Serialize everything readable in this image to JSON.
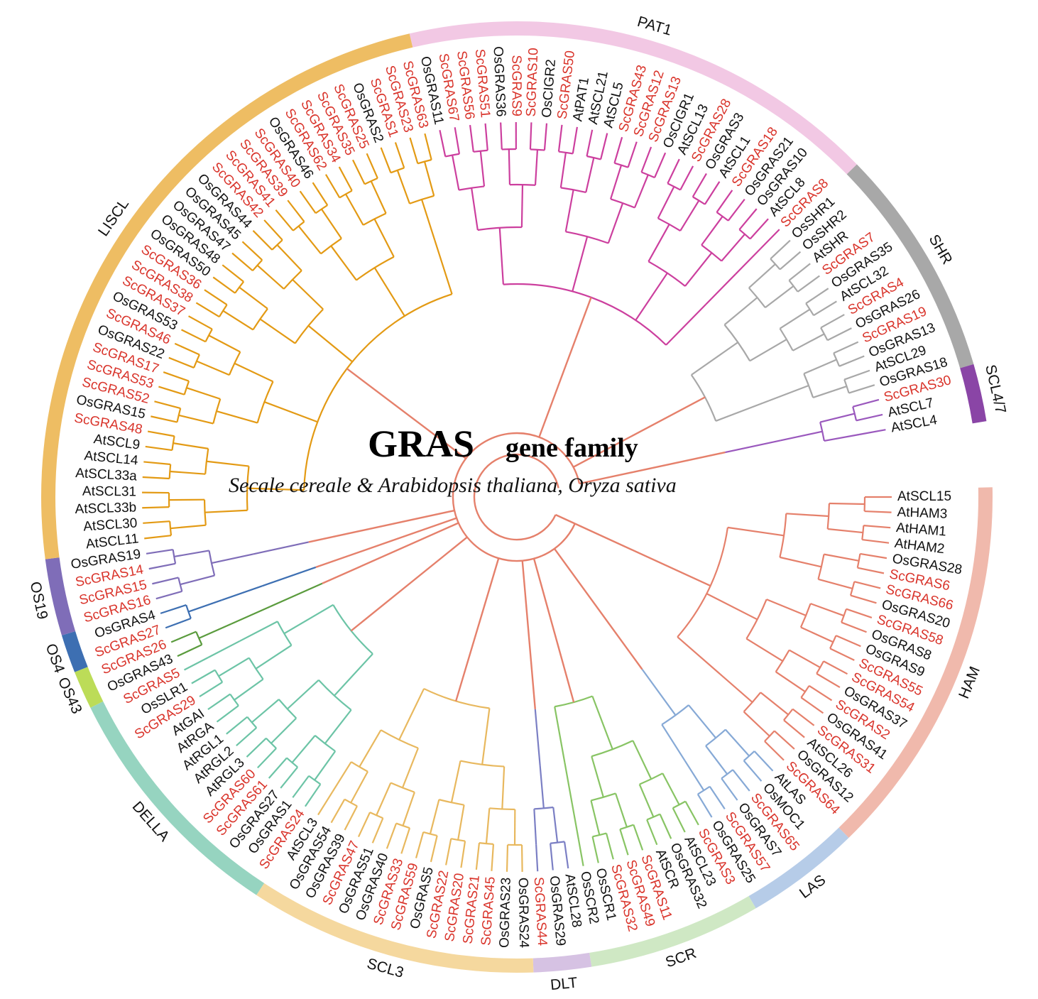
{
  "title": {
    "main": "GRAS",
    "gene": "gene family",
    "species": "Secale cereale & Arabidopsis thaliana, Oryza sativa"
  },
  "colors": {
    "rye_label": "#d9342b",
    "other_label": "#111111",
    "backbone": "#e5806b"
  },
  "subfamilies": [
    {
      "name": "LISCL",
      "color": "#eebd63",
      "branch": "#e39a14"
    },
    {
      "name": "PAT1",
      "color": "#f2c8e4",
      "branch": "#cc3f9e"
    },
    {
      "name": "SHR",
      "color": "#a8a8a8",
      "branch": "#a8a8a8"
    },
    {
      "name": "SCL4/7",
      "color": "#8a45a6",
      "branch": "#9a58bd"
    },
    {
      "name": "HAM",
      "color": "#f0b9ac",
      "branch": "#e5806b"
    },
    {
      "name": "LAS",
      "color": "#b6cce8",
      "branch": "#86a9d6"
    },
    {
      "name": "SCR",
      "color": "#cfe8c4",
      "branch": "#88c464"
    },
    {
      "name": "DLT",
      "color": "#d6c2e3",
      "branch": "#7b7fc4"
    },
    {
      "name": "SCL3",
      "color": "#f5d89e",
      "branch": "#e8b85e"
    },
    {
      "name": "DELLA",
      "color": "#96d4c0",
      "branch": "#6cc4a6"
    },
    {
      "name": "OS43",
      "color": "#bcdc58",
      "branch": "#5a9b3d"
    },
    {
      "name": "OS4",
      "color": "#3d6fb2",
      "branch": "#3d6fb2"
    },
    {
      "name": "OS19",
      "color": "#7f6db8",
      "branch": "#7f6db8"
    }
  ],
  "leaves": [
    {
      "label": "AtSCL15",
      "group": 4
    },
    {
      "label": "AtHAM3",
      "group": 4
    },
    {
      "label": "AtHAM1",
      "group": 4
    },
    {
      "label": "AtHAM2",
      "group": 4
    },
    {
      "label": "OsGRAS28",
      "group": 4
    },
    {
      "label": "ScGRAS6",
      "group": 4
    },
    {
      "label": "ScGRAS66",
      "group": 4
    },
    {
      "label": "OsGRAS20",
      "group": 4
    },
    {
      "label": "ScGRAS58",
      "group": 4
    },
    {
      "label": "OsGRAS8",
      "group": 4
    },
    {
      "label": "OsGRAS9",
      "group": 4
    },
    {
      "label": "ScGRAS55",
      "group": 4
    },
    {
      "label": "ScGRAS54",
      "group": 4
    },
    {
      "label": "OsGRAS37",
      "group": 4
    },
    {
      "label": "ScGRAS2",
      "group": 4
    },
    {
      "label": "OsGRAS41",
      "group": 4
    },
    {
      "label": "ScGRAS31",
      "group": 4
    },
    {
      "label": "AtSCL26",
      "group": 4
    },
    {
      "label": "OsGRAS12",
      "group": 4
    },
    {
      "label": "ScGRAS64",
      "group": 4
    },
    {
      "label": "AtLAS",
      "group": 5
    },
    {
      "label": "OsMOC1",
      "group": 5
    },
    {
      "label": "ScGRAS65",
      "group": 5
    },
    {
      "label": "OsGRAS7",
      "group": 5
    },
    {
      "label": "ScGRAS57",
      "group": 5
    },
    {
      "label": "OsGRAS25",
      "group": 5
    },
    {
      "label": "ScGRAS3",
      "group": 6
    },
    {
      "label": "AtSCL23",
      "group": 6
    },
    {
      "label": "OsGRAS32",
      "group": 6
    },
    {
      "label": "AtSCR",
      "group": 6
    },
    {
      "label": "ScGRAS11",
      "group": 6
    },
    {
      "label": "ScGRAS49",
      "group": 6
    },
    {
      "label": "ScGRAS32",
      "group": 6
    },
    {
      "label": "OsSCR1",
      "group": 6
    },
    {
      "label": "OsSCR2",
      "group": 6
    },
    {
      "label": "AtSCL28",
      "group": 7
    },
    {
      "label": "OsGRAS29",
      "group": 7
    },
    {
      "label": "ScGRAS44",
      "group": 7
    },
    {
      "label": "OsGRAS24",
      "group": 8
    },
    {
      "label": "OsGRAS23",
      "group": 8
    },
    {
      "label": "ScGRAS45",
      "group": 8
    },
    {
      "label": "ScGRAS21",
      "group": 8
    },
    {
      "label": "ScGRAS20",
      "group": 8
    },
    {
      "label": "ScGRAS22",
      "group": 8
    },
    {
      "label": "OsGRAS5",
      "group": 8
    },
    {
      "label": "ScGRAS59",
      "group": 8
    },
    {
      "label": "ScGRAS33",
      "group": 8
    },
    {
      "label": "OsGRAS40",
      "group": 8
    },
    {
      "label": "OsGRAS51",
      "group": 8
    },
    {
      "label": "ScGRAS47",
      "group": 8
    },
    {
      "label": "OsGRAS39",
      "group": 8
    },
    {
      "label": "OsGRAS54",
      "group": 8
    },
    {
      "label": "AtSCL3",
      "group": 8
    },
    {
      "label": "ScGRAS24",
      "group": 9
    },
    {
      "label": "OsGRAS1",
      "group": 9
    },
    {
      "label": "OsGRAS27",
      "group": 9
    },
    {
      "label": "ScGRAS61",
      "group": 9
    },
    {
      "label": "ScGRAS60",
      "group": 9
    },
    {
      "label": "AtRGL3",
      "group": 9
    },
    {
      "label": "AtRGL2",
      "group": 9
    },
    {
      "label": "AtRGL1",
      "group": 9
    },
    {
      "label": "AtRGA",
      "group": 9
    },
    {
      "label": "AtGAI",
      "group": 9
    },
    {
      "label": "ScGRAS29",
      "group": 9
    },
    {
      "label": "OsSLR1",
      "group": 9
    },
    {
      "label": "ScGRAS5",
      "group": 9
    },
    {
      "label": "OsGRAS43",
      "group": 10
    },
    {
      "label": "ScGRAS26",
      "group": 10
    },
    {
      "label": "ScGRAS27",
      "group": 11
    },
    {
      "label": "OsGRAS4",
      "group": 11
    },
    {
      "label": "ScGRAS16",
      "group": 12
    },
    {
      "label": "ScGRAS15",
      "group": 12
    },
    {
      "label": "ScGRAS14",
      "group": 12
    },
    {
      "label": "OsGRAS19",
      "group": 12
    },
    {
      "label": "AtSCL11",
      "group": 0
    },
    {
      "label": "AtSCL30",
      "group": 0
    },
    {
      "label": "AtSCL33b",
      "group": 0
    },
    {
      "label": "AtSCL31",
      "group": 0
    },
    {
      "label": "AtSCL33a",
      "group": 0
    },
    {
      "label": "AtSCL14",
      "group": 0
    },
    {
      "label": "AtSCL9",
      "group": 0
    },
    {
      "label": "ScGRAS48",
      "group": 0
    },
    {
      "label": "OsGRAS15",
      "group": 0
    },
    {
      "label": "ScGRAS52",
      "group": 0
    },
    {
      "label": "ScGRAS53",
      "group": 0
    },
    {
      "label": "ScGRAS17",
      "group": 0
    },
    {
      "label": "OsGRAS22",
      "group": 0
    },
    {
      "label": "ScGRAS46",
      "group": 0
    },
    {
      "label": "OsGRAS53",
      "group": 0
    },
    {
      "label": "ScGRAS37",
      "group": 0
    },
    {
      "label": "ScGRAS38",
      "group": 0
    },
    {
      "label": "ScGRAS36",
      "group": 0
    },
    {
      "label": "OsGRAS50",
      "group": 0
    },
    {
      "label": "OsGRAS48",
      "group": 0
    },
    {
      "label": "OsGRAS47",
      "group": 0
    },
    {
      "label": "OsGRAS45",
      "group": 0
    },
    {
      "label": "OsGRAS44",
      "group": 0
    },
    {
      "label": "ScGRAS42",
      "group": 0
    },
    {
      "label": "ScGRAS41",
      "group": 0
    },
    {
      "label": "ScGRAS39",
      "group": 0
    },
    {
      "label": "ScGRAS40",
      "group": 0
    },
    {
      "label": "OsGRAS46",
      "group": 0
    },
    {
      "label": "ScGRAS62",
      "group": 0
    },
    {
      "label": "ScGRAS34",
      "group": 0
    },
    {
      "label": "ScGRAS35",
      "group": 0
    },
    {
      "label": "ScGRAS25",
      "group": 0
    },
    {
      "label": "OsGRAS2",
      "group": 0
    },
    {
      "label": "ScGRAS1",
      "group": 0
    },
    {
      "label": "ScGRAS23",
      "group": 0
    },
    {
      "label": "ScGRAS63",
      "group": 0
    },
    {
      "label": "OsGRAS11",
      "group": 1
    },
    {
      "label": "ScGRAS67",
      "group": 1
    },
    {
      "label": "ScGRAS56",
      "group": 1
    },
    {
      "label": "ScGRAS51",
      "group": 1
    },
    {
      "label": "OsGRAS36",
      "group": 1
    },
    {
      "label": "ScGRAS9",
      "group": 1
    },
    {
      "label": "ScGRAS10",
      "group": 1
    },
    {
      "label": "OsCIGR2",
      "group": 1
    },
    {
      "label": "ScGRAS50",
      "group": 1
    },
    {
      "label": "AtPAT1",
      "group": 1
    },
    {
      "label": "AtSCL21",
      "group": 1
    },
    {
      "label": "AtSCL5",
      "group": 1
    },
    {
      "label": "ScGRAS43",
      "group": 1
    },
    {
      "label": "ScGRAS12",
      "group": 1
    },
    {
      "label": "ScGRAS13",
      "group": 1
    },
    {
      "label": "OsCIGR1",
      "group": 1
    },
    {
      "label": "AtSCL13",
      "group": 1
    },
    {
      "label": "ScGRAS28",
      "group": 1
    },
    {
      "label": "OsGRAS3",
      "group": 1
    },
    {
      "label": "AtSCL1",
      "group": 1
    },
    {
      "label": "ScGRAS18",
      "group": 1
    },
    {
      "label": "OsGRAS21",
      "group": 1
    },
    {
      "label": "OsGRAS10",
      "group": 1
    },
    {
      "label": "AtSCL8",
      "group": 1
    },
    {
      "label": "ScGRAS8",
      "group": 1
    },
    {
      "label": "OsSHR1",
      "group": 2
    },
    {
      "label": "OsSHR2",
      "group": 2
    },
    {
      "label": "AtSHR",
      "group": 2
    },
    {
      "label": "ScGRAS7",
      "group": 2
    },
    {
      "label": "OsGRAS35",
      "group": 2
    },
    {
      "label": "AtSCL32",
      "group": 2
    },
    {
      "label": "ScGRAS4",
      "group": 2
    },
    {
      "label": "OsGRAS26",
      "group": 2
    },
    {
      "label": "ScGRAS19",
      "group": 2
    },
    {
      "label": "OsGRAS13",
      "group": 2
    },
    {
      "label": "AtSCL29",
      "group": 2
    },
    {
      "label": "OsGRAS18",
      "group": 2
    },
    {
      "label": "ScGRAS30",
      "group": 3
    },
    {
      "label": "AtSCL7",
      "group": 3
    },
    {
      "label": "AtSCL4",
      "group": 3
    }
  ]
}
